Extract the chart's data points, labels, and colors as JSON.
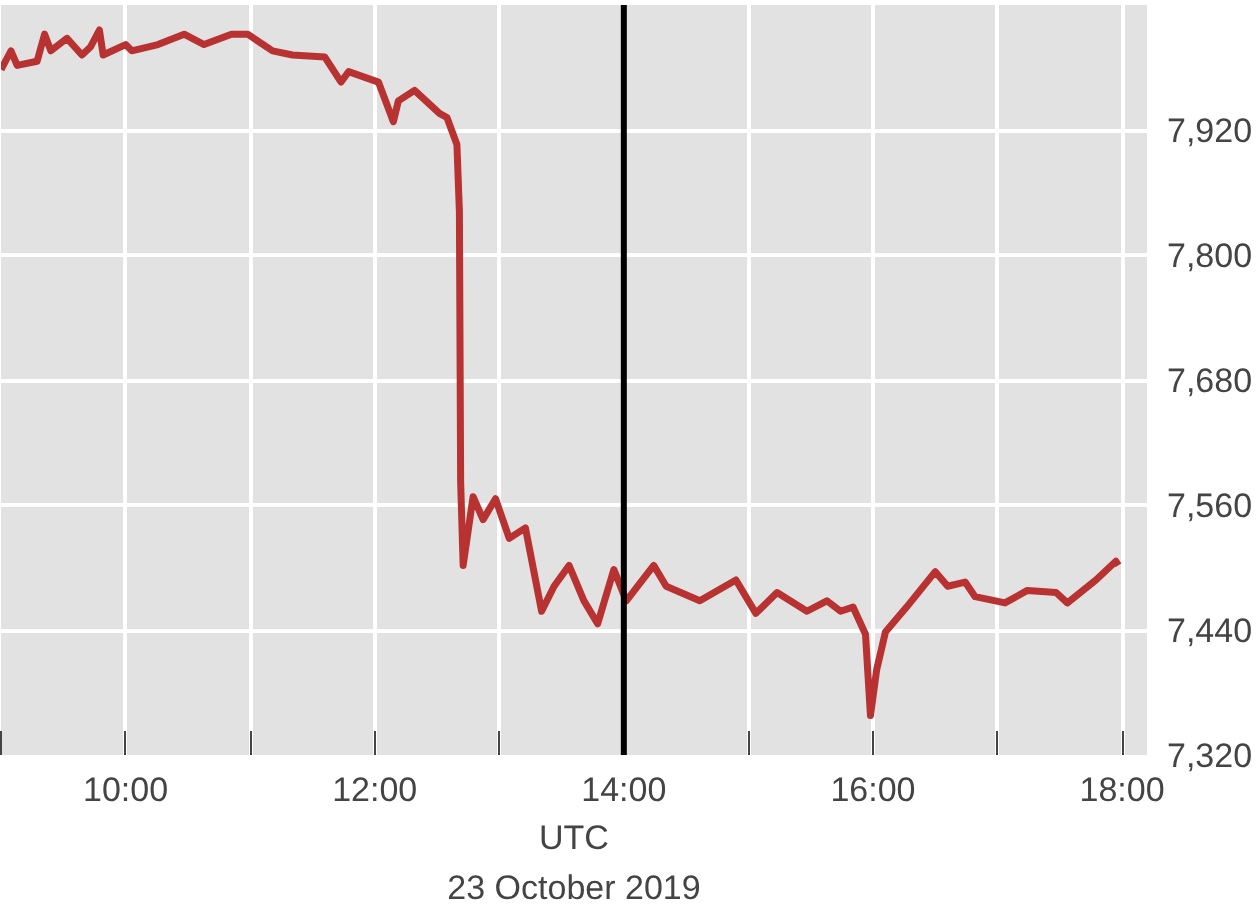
{
  "chart_data": {
    "type": "line",
    "xlabel": "UTC",
    "annotations": [
      "23 October 2019"
    ],
    "x": [
      9.0,
      9.08,
      9.13,
      9.29,
      9.35,
      9.4,
      9.53,
      9.65,
      9.72,
      9.79,
      9.82,
      10.0,
      10.05,
      10.26,
      10.47,
      10.63,
      10.85,
      10.98,
      11.18,
      11.34,
      11.6,
      11.73,
      11.79,
      12.03,
      12.15,
      12.19,
      12.32,
      12.52,
      12.58,
      12.66,
      12.68,
      12.69,
      12.71,
      12.79,
      12.87,
      12.97,
      13.08,
      13.21,
      13.34,
      13.44,
      13.56,
      13.68,
      13.79,
      13.92,
      14.02,
      14.24,
      14.34,
      14.61,
      14.9,
      15.06,
      15.23,
      15.47,
      15.63,
      15.74,
      15.84,
      15.94,
      15.98,
      16.03,
      16.1,
      16.27,
      16.5,
      16.6,
      16.74,
      16.82,
      17.06,
      17.24,
      17.47,
      17.56,
      17.79,
      17.95,
      17.97
    ],
    "series": [
      {
        "color": "#b83232",
        "values": [
          7978,
          7996,
          7982,
          7986,
          8012,
          7996,
          8008,
          7992,
          8000,
          8016,
          7992,
          8002,
          7996,
          8002,
          8012,
          8002,
          8012,
          8012,
          7996,
          7992,
          7990,
          7966,
          7976,
          7966,
          7928,
          7948,
          7958,
          7936,
          7932,
          7906,
          7842,
          7582,
          7502,
          7568,
          7546,
          7566,
          7528,
          7538,
          7458,
          7482,
          7502,
          7468,
          7446,
          7498,
          7468,
          7502,
          7482,
          7468,
          7488,
          7456,
          7476,
          7458,
          7468,
          7458,
          7462,
          7436,
          7358,
          7402,
          7438,
          7462,
          7496,
          7482,
          7486,
          7472,
          7466,
          7478,
          7476,
          7466,
          7488,
          7506,
          7502
        ]
      }
    ],
    "xlim": [
      9,
      18.2
    ],
    "ylim": [
      7320,
      8040
    ],
    "xticks": [
      {
        "value": 9,
        "label": null
      },
      {
        "value": 10,
        "label": "10:00"
      },
      {
        "value": 11,
        "label": null
      },
      {
        "value": 12,
        "label": "12:00"
      },
      {
        "value": 13,
        "label": null
      },
      {
        "value": 14,
        "label": "14:00"
      },
      {
        "value": 15,
        "label": null
      },
      {
        "value": 16,
        "label": "16:00"
      },
      {
        "value": 17,
        "label": null
      },
      {
        "value": 18,
        "label": "18:00"
      }
    ],
    "yticks": [
      {
        "value": 7320,
        "label": "7,320"
      },
      {
        "value": 7440,
        "label": "7,440"
      },
      {
        "value": 7560,
        "label": "7,560"
      },
      {
        "value": 7680,
        "label": "7,680"
      },
      {
        "value": 7800,
        "label": "7,800"
      },
      {
        "value": 7920,
        "label": "7,920"
      }
    ],
    "ref_lines": [
      {
        "axis": "x",
        "value": 14,
        "color": "#000000"
      }
    ],
    "grid": true
  }
}
